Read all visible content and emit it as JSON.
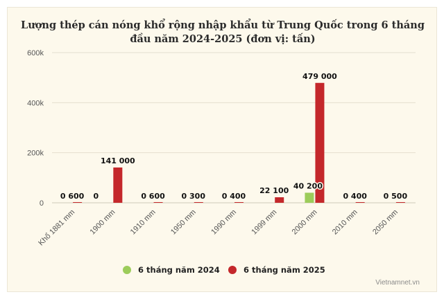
{
  "chart_data": {
    "type": "bar",
    "title_lines": [
      "Lượng thép cán nóng khổ rộng nhập khẩu từ Trung Quốc trong 6 tháng",
      "đầu năm 2024-2025 (đơn vị: tấn)"
    ],
    "categories": [
      "Khổ 1881 mm",
      "1900 mm",
      "1910 mm",
      "1950 mm",
      "1990 mm",
      "1999 mm",
      "2000 mm",
      "2010 mm",
      "2050 mm"
    ],
    "series": [
      {
        "name": "6 tháng năm 2024",
        "color": "#9ccc5a",
        "values": [
          0,
          0,
          0,
          0,
          0,
          0,
          40200,
          0,
          0
        ]
      },
      {
        "name": "6 tháng năm 2025",
        "color": "#c4282b",
        "values": [
          600,
          141000,
          600,
          300,
          400,
          22100,
          479000,
          400,
          500
        ]
      }
    ],
    "data_labels": [
      "0 600",
      "0",
      "141 000",
      "0 600",
      "0 300",
      "0 400",
      "22 100",
      "40 200",
      "479 000",
      "0 400",
      "0 500"
    ],
    "y_ticks": [
      "0",
      "200k",
      "400k",
      "600k"
    ],
    "y_tick_values": [
      0,
      200000,
      400000,
      600000
    ],
    "ylim": [
      0,
      600000
    ],
    "grid": true,
    "legend_position": "bottom-center",
    "credit": "Vietnamnet.vn"
  }
}
